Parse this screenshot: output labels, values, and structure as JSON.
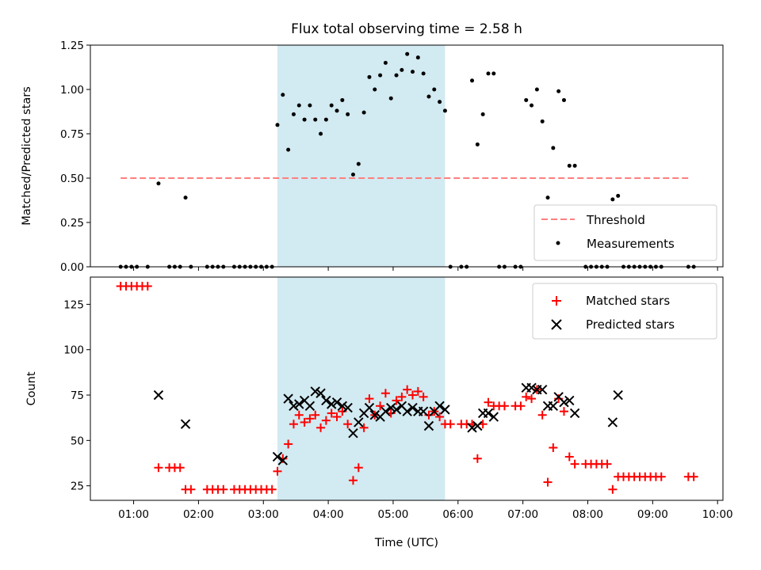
{
  "chart_data": [
    {
      "type": "scatter",
      "title": "Flux total observing time = 2.58 h",
      "xlabel": "",
      "ylabel": "Matched/Predicted stars",
      "xlim": [
        "00:20",
        "10:05"
      ],
      "ylim": [
        0,
        1.25
      ],
      "yticks": [
        "0.00",
        "0.25",
        "0.50",
        "0.75",
        "1.00",
        "1.25"
      ],
      "grid": false,
      "legend_position": "lower right",
      "highlight_span": {
        "x": [
          "03:13",
          "05:48"
        ],
        "color": "#add8e6"
      },
      "threshold": {
        "name": "Threshold",
        "y": 0.5,
        "x": [
          "00:48",
          "09:35"
        ],
        "color": "#ff7f7f",
        "style": "dashed"
      },
      "series": [
        {
          "name": "Measurements",
          "color": "#000000",
          "marker": "dot",
          "points": [
            [
              "00:48",
              0
            ],
            [
              "00:53",
              0
            ],
            [
              "00:58",
              0
            ],
            [
              "01:03",
              0
            ],
            [
              "01:13",
              0
            ],
            [
              "01:23",
              0.47
            ],
            [
              "01:33",
              0
            ],
            [
              "01:38",
              0
            ],
            [
              "01:43",
              0
            ],
            [
              "01:48",
              0.39
            ],
            [
              "01:53",
              0
            ],
            [
              "02:08",
              0
            ],
            [
              "02:13",
              0
            ],
            [
              "02:18",
              0
            ],
            [
              "02:23",
              0
            ],
            [
              "02:33",
              0
            ],
            [
              "02:38",
              0
            ],
            [
              "02:43",
              0
            ],
            [
              "02:48",
              0
            ],
            [
              "02:53",
              0
            ],
            [
              "02:58",
              0
            ],
            [
              "03:03",
              0
            ],
            [
              "03:08",
              0
            ],
            [
              "03:13",
              0.8
            ],
            [
              "03:18",
              0.97
            ],
            [
              "03:23",
              0.66
            ],
            [
              "03:28",
              0.86
            ],
            [
              "03:33",
              0.91
            ],
            [
              "03:38",
              0.83
            ],
            [
              "03:43",
              0.91
            ],
            [
              "03:48",
              0.83
            ],
            [
              "03:53",
              0.75
            ],
            [
              "03:58",
              0.83
            ],
            [
              "04:03",
              0.91
            ],
            [
              "04:08",
              0.88
            ],
            [
              "04:13",
              0.94
            ],
            [
              "04:18",
              0.86
            ],
            [
              "04:23",
              0.52
            ],
            [
              "04:28",
              0.58
            ],
            [
              "04:33",
              0.87
            ],
            [
              "04:38",
              1.07
            ],
            [
              "04:43",
              1.0
            ],
            [
              "04:48",
              1.08
            ],
            [
              "04:53",
              1.15
            ],
            [
              "04:58",
              0.95
            ],
            [
              "05:03",
              1.08
            ],
            [
              "05:08",
              1.11
            ],
            [
              "05:13",
              1.2
            ],
            [
              "05:18",
              1.1
            ],
            [
              "05:23",
              1.18
            ],
            [
              "05:28",
              1.09
            ],
            [
              "05:33",
              0.96
            ],
            [
              "05:38",
              1.0
            ],
            [
              "05:43",
              0.93
            ],
            [
              "05:48",
              0.88
            ],
            [
              "05:53",
              0
            ],
            [
              "06:03",
              0
            ],
            [
              "06:08",
              0
            ],
            [
              "06:13",
              1.05
            ],
            [
              "06:18",
              0.69
            ],
            [
              "06:23",
              0.86
            ],
            [
              "06:28",
              1.09
            ],
            [
              "06:33",
              1.09
            ],
            [
              "06:38",
              0
            ],
            [
              "06:43",
              0
            ],
            [
              "06:53",
              0
            ],
            [
              "06:58",
              0
            ],
            [
              "07:03",
              0.94
            ],
            [
              "07:08",
              0.91
            ],
            [
              "07:13",
              1.0
            ],
            [
              "07:18",
              0.82
            ],
            [
              "07:23",
              0.39
            ],
            [
              "07:28",
              0.67
            ],
            [
              "07:33",
              0.99
            ],
            [
              "07:38",
              0.94
            ],
            [
              "07:43",
              0.57
            ],
            [
              "07:48",
              0.57
            ],
            [
              "07:58",
              0
            ],
            [
              "08:03",
              0
            ],
            [
              "08:08",
              0
            ],
            [
              "08:13",
              0
            ],
            [
              "08:18",
              0
            ],
            [
              "08:23",
              0.38
            ],
            [
              "08:28",
              0.4
            ],
            [
              "08:33",
              0
            ],
            [
              "08:38",
              0
            ],
            [
              "08:43",
              0
            ],
            [
              "08:48",
              0
            ],
            [
              "08:53",
              0
            ],
            [
              "08:58",
              0
            ],
            [
              "09:03",
              0
            ],
            [
              "09:08",
              0
            ],
            [
              "09:33",
              0
            ],
            [
              "09:38",
              0
            ]
          ]
        }
      ]
    },
    {
      "type": "scatter",
      "title": "",
      "xlabel": "Time (UTC)",
      "ylabel": "Count",
      "xlim": [
        "00:20",
        "10:05"
      ],
      "ylim": [
        17,
        140
      ],
      "xticks": [
        "01:00",
        "02:00",
        "03:00",
        "04:00",
        "05:00",
        "06:00",
        "07:00",
        "08:00",
        "09:00",
        "10:00"
      ],
      "yticks": [
        "25",
        "50",
        "75",
        "100",
        "125"
      ],
      "grid": false,
      "legend_position": "upper right",
      "highlight_span": {
        "x": [
          "03:13",
          "05:48"
        ],
        "color": "#add8e6"
      },
      "series": [
        {
          "name": "Matched stars",
          "color": "#ff0000",
          "marker": "plus",
          "points": [
            [
              "00:48",
              135
            ],
            [
              "00:53",
              135
            ],
            [
              "00:58",
              135
            ],
            [
              "01:03",
              135
            ],
            [
              "01:08",
              135
            ],
            [
              "01:13",
              135
            ],
            [
              "01:23",
              35
            ],
            [
              "01:33",
              35
            ],
            [
              "01:38",
              35
            ],
            [
              "01:43",
              35
            ],
            [
              "01:48",
              23
            ],
            [
              "01:53",
              23
            ],
            [
              "02:08",
              23
            ],
            [
              "02:13",
              23
            ],
            [
              "02:18",
              23
            ],
            [
              "02:23",
              23
            ],
            [
              "02:33",
              23
            ],
            [
              "02:38",
              23
            ],
            [
              "02:43",
              23
            ],
            [
              "02:48",
              23
            ],
            [
              "02:53",
              23
            ],
            [
              "02:58",
              23
            ],
            [
              "03:03",
              23
            ],
            [
              "03:08",
              23
            ],
            [
              "03:13",
              33
            ],
            [
              "03:18",
              40
            ],
            [
              "03:23",
              48
            ],
            [
              "03:28",
              59
            ],
            [
              "03:33",
              64
            ],
            [
              "03:38",
              60
            ],
            [
              "03:43",
              62
            ],
            [
              "03:48",
              64
            ],
            [
              "03:53",
              57
            ],
            [
              "03:58",
              61
            ],
            [
              "04:03",
              65
            ],
            [
              "04:08",
              63
            ],
            [
              "04:13",
              66
            ],
            [
              "04:18",
              59
            ],
            [
              "04:23",
              28
            ],
            [
              "04:28",
              35
            ],
            [
              "04:33",
              57
            ],
            [
              "04:38",
              73
            ],
            [
              "04:43",
              64
            ],
            [
              "04:48",
              69
            ],
            [
              "04:53",
              76
            ],
            [
              "04:58",
              65
            ],
            [
              "05:03",
              72
            ],
            [
              "05:08",
              74
            ],
            [
              "05:13",
              78
            ],
            [
              "05:18",
              75
            ],
            [
              "05:23",
              77
            ],
            [
              "05:28",
              74
            ],
            [
              "05:33",
              64
            ],
            [
              "05:38",
              66
            ],
            [
              "05:43",
              63
            ],
            [
              "05:48",
              59
            ],
            [
              "05:53",
              59
            ],
            [
              "06:03",
              59
            ],
            [
              "06:08",
              59
            ],
            [
              "06:13",
              59
            ],
            [
              "06:18",
              40
            ],
            [
              "06:23",
              59
            ],
            [
              "06:28",
              71
            ],
            [
              "06:33",
              69
            ],
            [
              "06:38",
              69
            ],
            [
              "06:43",
              69
            ],
            [
              "06:53",
              69
            ],
            [
              "06:58",
              69
            ],
            [
              "07:03",
              74
            ],
            [
              "07:08",
              73
            ],
            [
              "07:13",
              78
            ],
            [
              "07:18",
              64
            ],
            [
              "07:23",
              27
            ],
            [
              "07:28",
              46
            ],
            [
              "07:33",
              73
            ],
            [
              "07:38",
              66
            ],
            [
              "07:43",
              41
            ],
            [
              "07:48",
              37
            ],
            [
              "07:58",
              37
            ],
            [
              "08:03",
              37
            ],
            [
              "08:08",
              37
            ],
            [
              "08:13",
              37
            ],
            [
              "08:18",
              37
            ],
            [
              "08:23",
              23
            ],
            [
              "08:28",
              30
            ],
            [
              "08:33",
              30
            ],
            [
              "08:38",
              30
            ],
            [
              "08:43",
              30
            ],
            [
              "08:48",
              30
            ],
            [
              "08:53",
              30
            ],
            [
              "08:58",
              30
            ],
            [
              "09:03",
              30
            ],
            [
              "09:08",
              30
            ],
            [
              "09:33",
              30
            ],
            [
              "09:38",
              30
            ]
          ]
        },
        {
          "name": "Predicted stars",
          "color": "#000000",
          "marker": "x",
          "points": [
            [
              "01:23",
              75
            ],
            [
              "01:48",
              59
            ],
            [
              "03:13",
              41
            ],
            [
              "03:18",
              39
            ],
            [
              "03:23",
              73
            ],
            [
              "03:28",
              69
            ],
            [
              "03:33",
              70
            ],
            [
              "03:38",
              72
            ],
            [
              "03:43",
              69
            ],
            [
              "03:48",
              77
            ],
            [
              "03:53",
              76
            ],
            [
              "03:58",
              72
            ],
            [
              "04:03",
              70
            ],
            [
              "04:08",
              71
            ],
            [
              "04:13",
              69
            ],
            [
              "04:18",
              68
            ],
            [
              "04:23",
              54
            ],
            [
              "04:28",
              60
            ],
            [
              "04:33",
              65
            ],
            [
              "04:38",
              68
            ],
            [
              "04:43",
              64
            ],
            [
              "04:48",
              63
            ],
            [
              "04:53",
              66
            ],
            [
              "04:58",
              68
            ],
            [
              "05:03",
              67
            ],
            [
              "05:08",
              69
            ],
            [
              "05:13",
              66
            ],
            [
              "05:18",
              68
            ],
            [
              "05:23",
              66
            ],
            [
              "05:28",
              66
            ],
            [
              "05:33",
              58
            ],
            [
              "05:38",
              66
            ],
            [
              "05:43",
              69
            ],
            [
              "05:48",
              67
            ],
            [
              "06:13",
              57
            ],
            [
              "06:18",
              58
            ],
            [
              "06:23",
              65
            ],
            [
              "06:28",
              65
            ],
            [
              "06:33",
              63
            ],
            [
              "07:03",
              79
            ],
            [
              "07:08",
              79
            ],
            [
              "07:13",
              78
            ],
            [
              "07:18",
              78
            ],
            [
              "07:23",
              69
            ],
            [
              "07:28",
              69
            ],
            [
              "07:33",
              74
            ],
            [
              "07:38",
              71
            ],
            [
              "07:43",
              72
            ],
            [
              "07:48",
              65
            ],
            [
              "08:23",
              60
            ],
            [
              "08:28",
              75
            ]
          ]
        }
      ]
    }
  ]
}
